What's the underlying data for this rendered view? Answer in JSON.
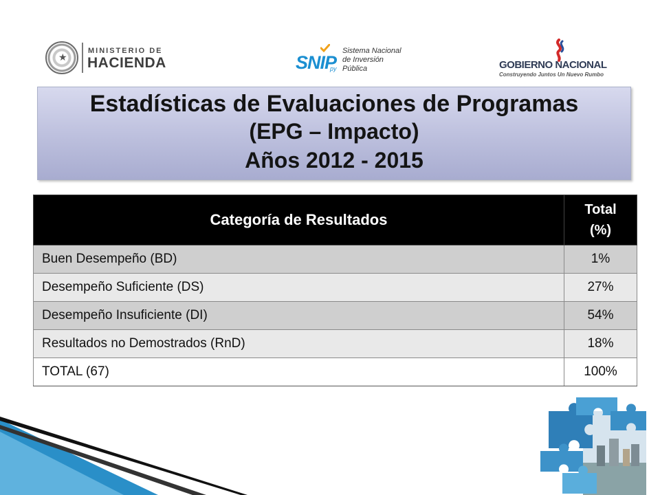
{
  "logos": {
    "hacienda": {
      "line1": "MINISTERIO DE",
      "line2": "HACIENDA"
    },
    "snip": {
      "word": "SNIP",
      "suffix": "py",
      "desc1": "Sistema Nacional",
      "desc2": "de Inversión",
      "desc3": "Pública"
    },
    "gobierno": {
      "title": "GOBIERNO NACIONAL",
      "tagline": "Construyendo Juntos Un Nuevo Rumbo"
    }
  },
  "title": {
    "line1": "Estadísticas de Evaluaciones de Programas",
    "line2": "(EPG – Impacto)",
    "line3": "Años 2012 - 2015"
  },
  "table": {
    "headers": {
      "category": "Categoría de Resultados",
      "total_line1": "Total",
      "total_line2": "(%)"
    },
    "rows": [
      {
        "category": "Buen Desempeño (BD)",
        "total": "1%"
      },
      {
        "category": "Desempeño Suficiente (DS)",
        "total": "27%"
      },
      {
        "category": "Desempeño Insuficiente (DI)",
        "total": "54%"
      },
      {
        "category": "Resultados no Demostrados (RnD)",
        "total": "18%"
      },
      {
        "category": "TOTAL (67)",
        "total": "100%"
      }
    ]
  },
  "colors": {
    "title_box_top": "#d7d9ee",
    "title_box_bottom": "#a8acd0",
    "header_bg": "#000000",
    "row_dark": "#cfcfcf",
    "row_light": "#e9e9e9",
    "snip_blue": "#1b8fd1",
    "accent_blue": "#2a8fc8"
  }
}
